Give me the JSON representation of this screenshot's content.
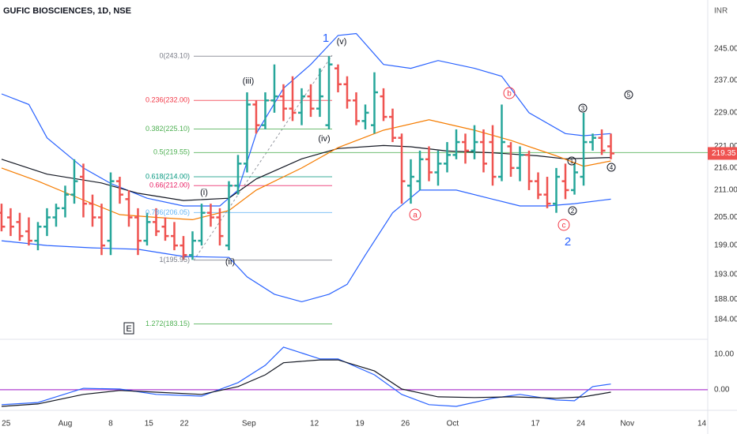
{
  "chart_data": [
    {
      "type": "ohlc",
      "title": "GUFIC BIOSCIENCES, 1D, NSE",
      "ylabel": "INR",
      "log_scale": true,
      "up_color": "#26a69a",
      "down_color": "#ef5350",
      "xlim": [
        -0.17,
        77.65
      ],
      "ylim": [
        180.2,
        258
      ],
      "yticks": [
        {
          "value": 245,
          "label": "245.00"
        },
        {
          "value": 237,
          "label": "237.00"
        },
        {
          "value": 229,
          "label": "229.00"
        },
        {
          "value": 221,
          "label": "221.00"
        },
        {
          "value": 216,
          "label": "216.00"
        },
        {
          "value": 211,
          "label": "211.00"
        },
        {
          "value": 205,
          "label": "205.00"
        },
        {
          "value": 199,
          "label": "199.00"
        },
        {
          "value": 193,
          "label": "193.00"
        },
        {
          "value": 188,
          "label": "188.00"
        },
        {
          "value": 184,
          "label": "184.00"
        }
      ],
      "last_price": 219.35,
      "last_price_color": "#ef5350",
      "bars": [
        {
          "open": 206,
          "high": 208,
          "low": 202,
          "close": 203
        },
        {
          "open": 205,
          "high": 207,
          "low": 201,
          "close": 203
        },
        {
          "open": 204,
          "high": 206,
          "low": 200,
          "close": 201
        },
        {
          "open": 202,
          "high": 205,
          "low": 199,
          "close": 200
        },
        {
          "open": 200,
          "high": 204,
          "low": 198,
          "close": 203
        },
        {
          "open": 203,
          "high": 207,
          "low": 201,
          "close": 205
        },
        {
          "open": 205,
          "high": 208,
          "low": 203,
          "close": 207
        },
        {
          "open": 207,
          "high": 212,
          "low": 205,
          "close": 210
        },
        {
          "open": 210,
          "high": 218,
          "low": 208,
          "close": 213
        },
        {
          "open": 214,
          "high": 217,
          "low": 205,
          "close": 208
        },
        {
          "open": 208,
          "high": 210,
          "low": 203,
          "close": 205
        },
        {
          "open": 205,
          "high": 208,
          "low": 197,
          "close": 199
        },
        {
          "open": 200,
          "high": 215,
          "low": 197,
          "close": 213
        },
        {
          "open": 213,
          "high": 214,
          "low": 208,
          "close": 210
        },
        {
          "open": 209,
          "high": 211,
          "low": 203,
          "close": 205
        },
        {
          "open": 205,
          "high": 207,
          "low": 197,
          "close": 200
        },
        {
          "open": 200,
          "high": 206,
          "low": 199,
          "close": 204
        },
        {
          "open": 204,
          "high": 207,
          "low": 201,
          "close": 202
        },
        {
          "open": 203,
          "high": 205,
          "low": 200,
          "close": 201
        },
        {
          "open": 201,
          "high": 204,
          "low": 198,
          "close": 199
        },
        {
          "open": 199,
          "high": 201,
          "low": 196,
          "close": 197
        },
        {
          "open": 197,
          "high": 202,
          "low": 196,
          "close": 200
        },
        {
          "open": 200,
          "high": 208,
          "low": 199,
          "close": 206
        },
        {
          "open": 206,
          "high": 208,
          "low": 203,
          "close": 205
        },
        {
          "open": 205,
          "high": 207,
          "low": 199,
          "close": 201
        },
        {
          "open": 199,
          "high": 213,
          "low": 198,
          "close": 212
        },
        {
          "open": 212,
          "high": 219,
          "low": 210,
          "close": 217
        },
        {
          "open": 217,
          "high": 234,
          "low": 215,
          "close": 231
        },
        {
          "open": 231,
          "high": 232,
          "low": 224,
          "close": 226
        },
        {
          "open": 226,
          "high": 234,
          "low": 225,
          "close": 232
        },
        {
          "open": 232,
          "high": 241,
          "low": 229,
          "close": 233
        },
        {
          "open": 233,
          "high": 236,
          "low": 227,
          "close": 230
        },
        {
          "open": 230,
          "high": 238,
          "low": 227,
          "close": 229
        },
        {
          "open": 229,
          "high": 235,
          "low": 226,
          "close": 233
        },
        {
          "open": 233,
          "high": 236,
          "low": 228,
          "close": 230
        },
        {
          "open": 230,
          "high": 240,
          "low": 228,
          "close": 233
        },
        {
          "open": 226,
          "high": 243.1,
          "low": 225,
          "close": 241
        },
        {
          "open": 240,
          "high": 241,
          "low": 234,
          "close": 236
        },
        {
          "open": 236,
          "high": 238,
          "low": 230,
          "close": 232
        },
        {
          "open": 232,
          "high": 234,
          "low": 226,
          "close": 227
        },
        {
          "open": 227,
          "high": 231,
          "low": 225,
          "close": 229
        },
        {
          "open": 226,
          "high": 239,
          "low": 224,
          "close": 234
        },
        {
          "open": 233,
          "high": 235,
          "low": 227,
          "close": 228
        },
        {
          "open": 228,
          "high": 230,
          "low": 222,
          "close": 223
        },
        {
          "open": 223,
          "high": 224,
          "low": 208,
          "close": 213
        },
        {
          "open": 212,
          "high": 218,
          "low": 208,
          "close": 214
        },
        {
          "open": 213,
          "high": 220,
          "low": 211,
          "close": 218
        },
        {
          "open": 218,
          "high": 221,
          "low": 213,
          "close": 215
        },
        {
          "open": 215,
          "high": 220,
          "low": 212,
          "close": 217
        },
        {
          "open": 217,
          "high": 222,
          "low": 215,
          "close": 219
        },
        {
          "open": 219,
          "high": 225,
          "low": 218,
          "close": 222
        },
        {
          "open": 222,
          "high": 224,
          "low": 217,
          "close": 220
        },
        {
          "open": 220,
          "high": 226,
          "low": 218,
          "close": 222
        },
        {
          "open": 222,
          "high": 225,
          "low": 215,
          "close": 217
        },
        {
          "open": 222,
          "high": 226,
          "low": 212,
          "close": 214
        },
        {
          "open": 214,
          "high": 231,
          "low": 213,
          "close": 222
        },
        {
          "open": 221,
          "high": 222,
          "low": 214,
          "close": 216
        },
        {
          "open": 216,
          "high": 221,
          "low": 213,
          "close": 219
        },
        {
          "open": 219,
          "high": 220,
          "low": 211,
          "close": 213
        },
        {
          "open": 213,
          "high": 215,
          "low": 209,
          "close": 210
        },
        {
          "open": 210,
          "high": 214,
          "low": 207,
          "close": 208
        },
        {
          "open": 208,
          "high": 216,
          "low": 206,
          "close": 214
        },
        {
          "open": 213,
          "high": 217,
          "low": 209,
          "close": 211
        },
        {
          "open": 211,
          "high": 217,
          "low": 210,
          "close": 215
        },
        {
          "open": 214,
          "high": 229,
          "low": 212,
          "close": 222
        },
        {
          "open": 222,
          "high": 224,
          "low": 220,
          "close": 223
        },
        {
          "open": 223,
          "high": 225,
          "low": 219,
          "close": 220
        },
        {
          "open": 221,
          "high": 224,
          "low": 218,
          "close": 219.35
        }
      ],
      "lines": [
        {
          "color": "#2962ff",
          "x": [
            0,
            3,
            5,
            9,
            12,
            16,
            20,
            24,
            26,
            28,
            31,
            34,
            37,
            39,
            42,
            45,
            48,
            52,
            55,
            58,
            62,
            64,
            67
          ],
          "values": [
            233.6,
            231,
            223,
            216,
            212.5,
            209.2,
            207.5,
            207.5,
            211,
            224,
            235,
            241,
            248.5,
            249,
            241,
            240,
            242,
            240,
            238,
            229,
            224,
            223.5,
            224
          ]
        },
        {
          "color": "#2962ff",
          "x": [
            0,
            5,
            10,
            15,
            20,
            25,
            27,
            30,
            33,
            36,
            38,
            40,
            43,
            46,
            50,
            54,
            57,
            60,
            63,
            67
          ],
          "values": [
            200,
            199,
            198.5,
            198.2,
            196.7,
            196.5,
            192.5,
            189,
            187.5,
            189,
            191,
            197,
            206,
            211,
            211,
            209,
            207.5,
            207.5,
            208,
            209
          ]
        },
        {
          "color": "#131722",
          "x": [
            0,
            5,
            11,
            15,
            20,
            25,
            28,
            33,
            37,
            42,
            45,
            49,
            54,
            59,
            62,
            67
          ],
          "values": [
            218,
            214.6,
            212.6,
            210.3,
            208.7,
            209.2,
            213.5,
            218.1,
            220.5,
            221.2,
            220.9,
            219.9,
            219.5,
            218.8,
            218.1,
            218.4
          ]
        },
        {
          "color": "#f57c00",
          "x": [
            0,
            4,
            9,
            13,
            17,
            21,
            25,
            28,
            33,
            37,
            42,
            47,
            52,
            56,
            61,
            64,
            67
          ],
          "values": [
            216,
            213,
            208.8,
            205.6,
            205,
            204.5,
            206.5,
            211,
            216,
            220.7,
            224.8,
            227.3,
            224.8,
            222.4,
            218.8,
            216.4,
            217.6
          ]
        }
      ],
      "fib_levels": [
        {
          "label": "0(243.10)",
          "price": 243.1,
          "color": "#787b86"
        },
        {
          "label": "0.236(232.00)",
          "price": 232,
          "color": "#f23645"
        },
        {
          "label": "0.382(225.10)",
          "price": 225.1,
          "color": "#4caf50"
        },
        {
          "label": "0.5(219.55)",
          "price": 219.55,
          "color": "#4caf50",
          "extend_right": true
        },
        {
          "label": "0.618(214.00)",
          "price": 214,
          "color": "#089981"
        },
        {
          "label": "0.66(212.00)",
          "price": 212,
          "color": "#e91e63"
        },
        {
          "label": "0.786(206.05)",
          "price": 206.05,
          "color": "#64b5f6"
        },
        {
          "label": "1(195.95)",
          "price": 195.95,
          "color": "#787b86"
        },
        {
          "label": "1.272(183.15)",
          "price": 183.15,
          "color": "#4caf50"
        }
      ],
      "annotations": [
        {
          "text": "1",
          "color": "#2962ff"
        },
        {
          "text": "(v)",
          "color": "#131722"
        },
        {
          "text": "(iii)",
          "color": "#131722"
        },
        {
          "text": "(iv)",
          "color": "#131722"
        },
        {
          "text": "(i)",
          "color": "#131722"
        },
        {
          "text": "(ii)",
          "color": "#131722"
        },
        {
          "text": "a",
          "color": "#f23645",
          "circled": true
        },
        {
          "text": "b",
          "color": "#f23645",
          "circled": true
        },
        {
          "text": "c",
          "color": "#f23645",
          "circled": true
        },
        {
          "text": "2",
          "color": "#2962ff"
        },
        {
          "text": "1",
          "color": "#131722",
          "circled": true
        },
        {
          "text": "2",
          "color": "#131722",
          "circled": true
        },
        {
          "text": "3",
          "color": "#131722",
          "circled": true
        },
        {
          "text": "4",
          "color": "#131722",
          "circled": true
        },
        {
          "text": "5",
          "color": "#131722",
          "circled": true
        },
        {
          "text": "E",
          "color": "#131722",
          "boxed": true
        }
      ]
    },
    {
      "type": "line",
      "xlim": [
        -0.17,
        77.65
      ],
      "ylim": [
        -5.8,
        14.2
      ],
      "yticks": [
        {
          "value": 10,
          "label": "10.00"
        },
        {
          "value": 0,
          "label": "0.00"
        }
      ],
      "reference_line": 0,
      "reference_color": "#b040d0",
      "xticks": [
        {
          "value": 0.5,
          "label": "25"
        },
        {
          "value": 7,
          "label": "Aug"
        },
        {
          "value": 12,
          "label": "8"
        },
        {
          "value": 16.2,
          "label": "15"
        },
        {
          "value": 20.1,
          "label": "22"
        },
        {
          "value": 27.2,
          "label": "Sep"
        },
        {
          "value": 34.4,
          "label": "12"
        },
        {
          "value": 39.4,
          "label": "19"
        },
        {
          "value": 44.4,
          "label": "26"
        },
        {
          "value": 49.6,
          "label": "Oct"
        },
        {
          "value": 58.7,
          "label": "17"
        },
        {
          "value": 63.7,
          "label": "24"
        },
        {
          "value": 68.8,
          "label": "Nov"
        },
        {
          "value": 77,
          "label": "14"
        }
      ],
      "series": [
        {
          "color": "#2962ff",
          "x": [
            0,
            4,
            9,
            13,
            17,
            22,
            26,
            29,
            31,
            35,
            37,
            41,
            44,
            47,
            50,
            54,
            57,
            61,
            63,
            65,
            67
          ],
          "values": [
            -4.2,
            -3.6,
            0.4,
            0.2,
            -1.3,
            -1.8,
            2,
            6.9,
            12,
            8.7,
            8.7,
            4.2,
            -1.3,
            -4.2,
            -4.7,
            -2.4,
            -1.3,
            -2.9,
            -3.1,
            0.9,
            1.6
          ]
        },
        {
          "color": "#131722",
          "x": [
            0,
            4,
            9,
            13,
            17,
            22,
            26,
            29,
            31,
            35,
            37,
            41,
            44,
            48,
            52,
            56,
            61,
            64,
            67
          ],
          "values": [
            -4.7,
            -4,
            -1.3,
            -0.2,
            -0.7,
            -1.3,
            0.9,
            4.2,
            7.6,
            8.4,
            8.4,
            5.3,
            0.2,
            -2,
            -2.2,
            -2,
            -2.4,
            -2,
            -0.7
          ]
        }
      ]
    }
  ]
}
